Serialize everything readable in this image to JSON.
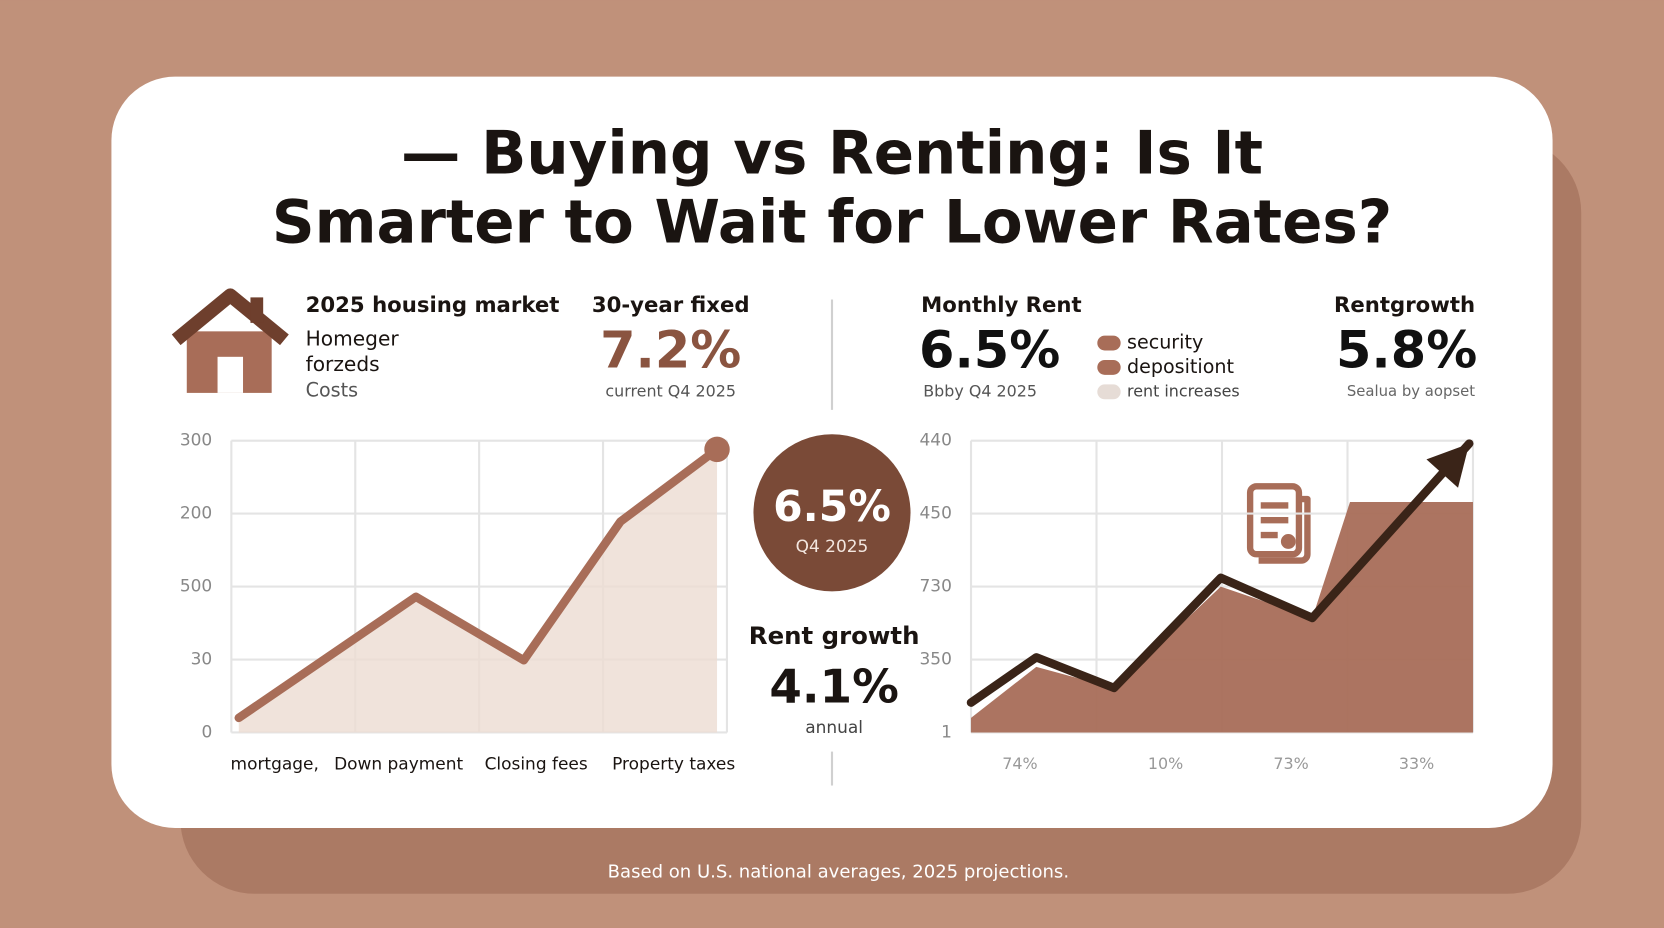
{
  "title_lines": [
    "— Buying vs Renting: Is It",
    "Smarter to Wait for Lower Rates?"
  ],
  "buy_panel": {
    "heading": "2025 housing market",
    "lines": [
      "Homeger",
      "forzeds",
      "Costs"
    ],
    "rate_label": "30-year fixed",
    "rate_value": "7.2%",
    "rate_note": "current Q4 2025"
  },
  "center": {
    "badge_value": "6.5%",
    "badge_note": "Q4 2025",
    "growth_label": "Rent growth",
    "growth_value": "4.1%",
    "growth_note": "annual"
  },
  "rent_panel": {
    "heading": "Monthly Rent",
    "value": "6.5%",
    "note": "Bbby Q4 2025",
    "legend": [
      {
        "label": "security",
        "color": "#a86d58"
      },
      {
        "label": "depositiont",
        "color": "#a86d58"
      },
      {
        "label": "rent increases",
        "color": "#e6dcd6"
      }
    ],
    "growth_label": "Rentgrowth",
    "growth_value": "5.8%",
    "growth_note": "Sealua by aopset"
  },
  "footer": "Based on U.S. national averages, 2025 projections.",
  "chart_data": [
    {
      "type": "line",
      "xlim": [
        0,
        4
      ],
      "ylim": [
        0,
        4
      ],
      "yticks": [
        {
          "value": 0,
          "label": "0"
        },
        {
          "value": 1,
          "label": "30"
        },
        {
          "value": 2,
          "label": "500"
        },
        {
          "value": 3,
          "label": "200"
        },
        {
          "value": 4,
          "label": "300"
        }
      ],
      "xticks": [
        {
          "value": 0.35,
          "label": "mortgage,"
        },
        {
          "value": 1.35,
          "label": "Down payment"
        },
        {
          "value": 2.46,
          "label": "Closing fees"
        },
        {
          "value": 3.57,
          "label": "Property taxes"
        }
      ],
      "grid": true,
      "series": [
        {
          "kind": "line",
          "color": "#a86d58",
          "fill": "#ecdcd2",
          "end_dot": true,
          "x": [
            0.06,
            1.49,
            2.36,
            3.14,
            3.92
          ],
          "values": [
            0.2,
            1.86,
            0.99,
            2.89,
            3.88
          ]
        }
      ]
    },
    {
      "type": "line",
      "xlim": [
        0,
        4
      ],
      "ylim": [
        0,
        4
      ],
      "yticks": [
        {
          "value": 0,
          "label": "1"
        },
        {
          "value": 1,
          "label": "350"
        },
        {
          "value": 2,
          "label": "730"
        },
        {
          "value": 3,
          "label": "450"
        },
        {
          "value": 4,
          "label": "440"
        }
      ],
      "xticks": [
        {
          "value": 0.39,
          "label": "74%"
        },
        {
          "value": 1.55,
          "label": "10%"
        },
        {
          "value": 2.55,
          "label": "73%"
        },
        {
          "value": 3.55,
          "label": "33%"
        }
      ],
      "grid": true,
      "series": [
        {
          "kind": "area",
          "color": "#a86d58",
          "x": [
            0,
            0.52,
            1.14,
            1.99,
            2.72,
            3.02,
            4.0
          ],
          "values": [
            0.2,
            0.9,
            0.61,
            2.0,
            1.57,
            3.16,
            3.16
          ]
        },
        {
          "kind": "line",
          "color": "#3a2418",
          "arrow": true,
          "x": [
            0,
            0.52,
            1.14,
            1.99,
            2.72,
            3.97
          ],
          "values": [
            0.41,
            1.03,
            0.61,
            2.12,
            1.57,
            3.96
          ]
        }
      ]
    }
  ]
}
